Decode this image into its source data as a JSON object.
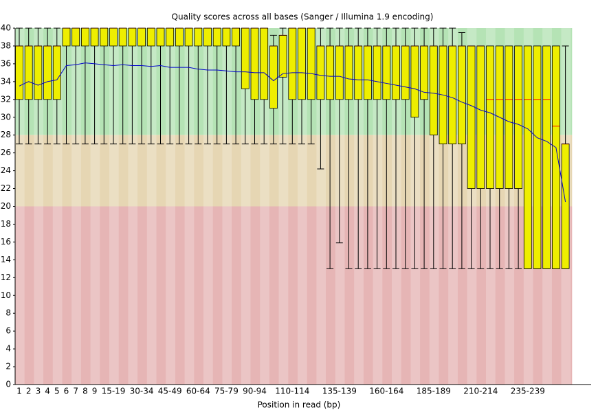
{
  "chart_data": {
    "type": "box",
    "title": "Quality scores across all bases (Sanger / Illumina 1.9 encoding)",
    "x_label": "Position in read (bp)",
    "categories": [
      "1",
      "2",
      "3",
      "4",
      "5",
      "6",
      "7",
      "8",
      "9",
      null,
      "15-19",
      null,
      null,
      "30-34",
      null,
      null,
      "45-49",
      null,
      null,
      "60-64",
      null,
      null,
      "75-79",
      null,
      null,
      "90-94",
      null,
      null,
      null,
      "110-114",
      null,
      null,
      null,
      null,
      "135-139",
      null,
      null,
      null,
      null,
      "160-164",
      null,
      null,
      null,
      null,
      "185-189",
      null,
      null,
      null,
      null,
      "210-214",
      null,
      null,
      null,
      null,
      "235-239",
      null,
      null,
      null,
      null
    ],
    "whisker_low": [
      27,
      27,
      27,
      27,
      27,
      27,
      27,
      27,
      27,
      27,
      27,
      27,
      27,
      27,
      27,
      27,
      27,
      27,
      27,
      27,
      27,
      27,
      27,
      27,
      27,
      27,
      27,
      27,
      27,
      27,
      27,
      27,
      24.2,
      13,
      15.9,
      13,
      13,
      13,
      13,
      13,
      13,
      13,
      13,
      13,
      13,
      13,
      13,
      13,
      13,
      13,
      13,
      13,
      13,
      13,
      13,
      13,
      13,
      13,
      13
    ],
    "q1": [
      32,
      32,
      32,
      32,
      32,
      38,
      38,
      38,
      38,
      38,
      38,
      38,
      38,
      38,
      38,
      38,
      38,
      38,
      38,
      38,
      38,
      38,
      38,
      38,
      33.2,
      32,
      32,
      31,
      34.5,
      32,
      32,
      32,
      32,
      32,
      32,
      32,
      32,
      32,
      32,
      32,
      32,
      32,
      30,
      32,
      28,
      27,
      27,
      27,
      22,
      22,
      22,
      22,
      22,
      22,
      13,
      13,
      13,
      13,
      13
    ],
    "median": [
      38,
      38,
      38,
      38,
      38,
      40,
      40,
      40,
      40,
      40,
      40,
      40,
      40,
      40,
      40,
      40,
      40,
      40,
      40,
      40,
      40,
      40,
      40,
      40,
      40,
      40,
      40,
      38,
      39.2,
      40,
      40,
      40,
      38,
      38,
      38,
      38,
      38,
      38,
      38,
      38,
      38,
      38,
      38,
      38,
      38,
      38,
      38,
      38,
      38,
      38,
      32,
      32,
      32,
      32,
      32,
      32,
      32,
      29,
      27
    ],
    "q3": [
      38,
      38,
      38,
      38,
      38,
      40,
      40,
      40,
      40,
      40,
      40,
      40,
      40,
      40,
      40,
      40,
      40,
      40,
      40,
      40,
      40,
      40,
      40,
      40,
      40,
      40,
      40,
      38,
      39.2,
      40,
      40,
      40,
      38,
      38,
      38,
      38,
      38,
      38,
      38,
      38,
      38,
      38,
      38,
      38,
      38,
      38,
      38,
      38,
      38,
      38,
      38,
      38,
      38,
      38,
      38,
      38,
      38,
      38,
      27
    ],
    "whisker_high": [
      40,
      40,
      40,
      40,
      40,
      40,
      40,
      40,
      40,
      40,
      40,
      40,
      40,
      40,
      40,
      40,
      40,
      40,
      40,
      40,
      40,
      40,
      40,
      40,
      40,
      40,
      40,
      39.2,
      40,
      40,
      40,
      40,
      40,
      40,
      40,
      40,
      40,
      40,
      40,
      40,
      40,
      40,
      40,
      40,
      40,
      40,
      40,
      39.5,
      38,
      38,
      38,
      38,
      38,
      38,
      38,
      38,
      38,
      38,
      38
    ],
    "mean": [
      33.5,
      34.0,
      33.6,
      34.0,
      34.2,
      35.8,
      35.9,
      36.1,
      36.0,
      35.9,
      35.8,
      35.9,
      35.8,
      35.8,
      35.7,
      35.8,
      35.6,
      35.6,
      35.6,
      35.4,
      35.3,
      35.3,
      35.2,
      35.1,
      35.1,
      35.0,
      35.0,
      34.1,
      34.9,
      35.0,
      35.0,
      34.9,
      34.7,
      34.6,
      34.6,
      34.3,
      34.2,
      34.2,
      34.0,
      33.8,
      33.6,
      33.4,
      33.2,
      32.8,
      32.7,
      32.5,
      32.2,
      31.7,
      31.3,
      30.8,
      30.5,
      30.0,
      29.5,
      29.2,
      28.7,
      27.7,
      27.3,
      26.6,
      20.5
    ],
    "box_color": "#eeee00",
    "median_color": "#ff0000",
    "mean_color": "#0000cc",
    "bands": [
      {
        "from": 28,
        "to": 40,
        "color": "#b5e3b5"
      },
      {
        "from": 20,
        "to": 28,
        "color": "#e6d6b3"
      },
      {
        "from": 0,
        "to": 20,
        "color": "#e6b5b5"
      }
    ],
    "ylim": [
      0,
      40
    ],
    "yticks": [
      0,
      2,
      4,
      6,
      8,
      10,
      12,
      14,
      16,
      18,
      20,
      22,
      24,
      26,
      28,
      30,
      32,
      34,
      36,
      38,
      40
    ]
  }
}
